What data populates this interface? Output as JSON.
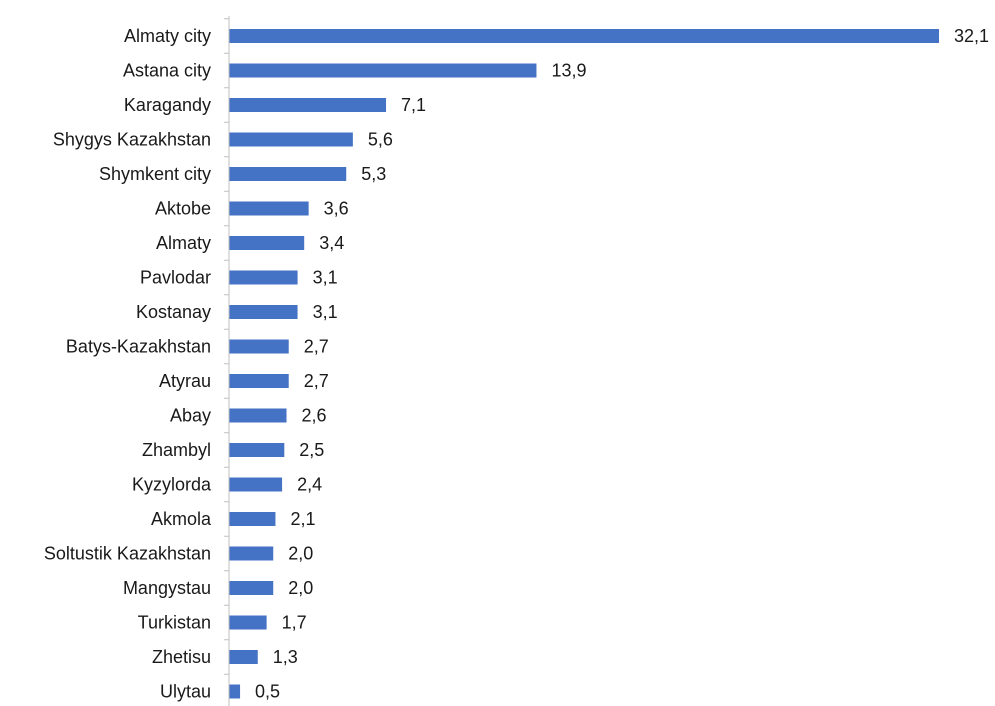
{
  "colors": {
    "bar": "#4472c4",
    "axis": "#bfbfbf",
    "text": "#1a1a1a",
    "background": "#ffffff"
  },
  "chart_data": {
    "type": "bar",
    "orientation": "horizontal",
    "title": "",
    "xlabel": "",
    "ylabel": "",
    "grid": false,
    "legend": "none",
    "xlim": [
      0,
      32.1
    ],
    "categories": [
      "Almaty city",
      "Astana city",
      "Karagandy",
      "Shygys Kazakhstan",
      "Shymkent city",
      "Aktobe",
      "Almaty",
      "Pavlodar",
      "Kostanay",
      "Batys-Kazakhstan",
      "Atyrau",
      "Abay",
      "Zhambyl",
      "Kyzylorda",
      "Akmola",
      "Soltustik Kazakhstan",
      "Mangystau",
      "Turkistan",
      "Zhetisu",
      "Ulytau"
    ],
    "values": [
      32.1,
      13.9,
      7.1,
      5.6,
      5.3,
      3.6,
      3.4,
      3.1,
      3.1,
      2.7,
      2.7,
      2.6,
      2.5,
      2.4,
      2.1,
      2.0,
      2.0,
      1.7,
      1.3,
      0.5
    ],
    "value_labels": [
      "32,1",
      "13,9",
      "7,1",
      "5,6",
      "5,3",
      "3,6",
      "3,4",
      "3,1",
      "3,1",
      "2,7",
      "2,7",
      "2,6",
      "2,5",
      "2,4",
      "2,1",
      "2,0",
      "2,0",
      "1,7",
      "1,3",
      "0,5"
    ]
  }
}
